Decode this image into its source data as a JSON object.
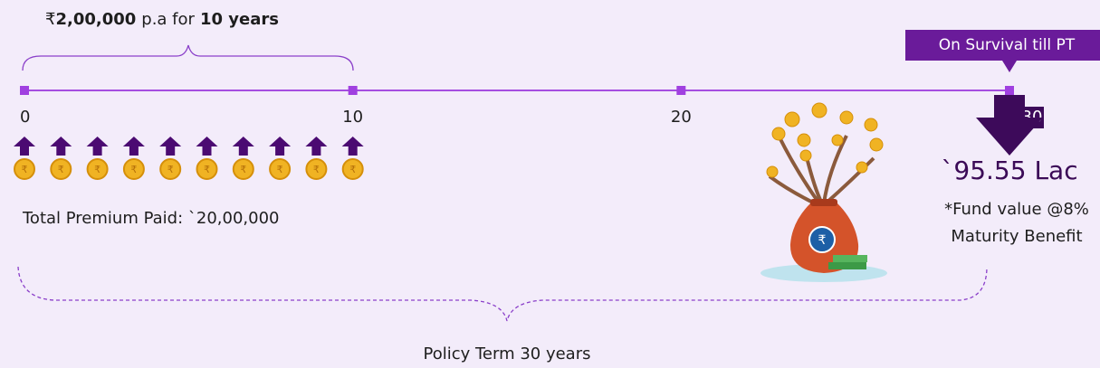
{
  "header": {
    "currency": "₹",
    "amount": "2,00,000",
    "middle": "p.a for",
    "term": "10 years"
  },
  "timeline": {
    "labels": [
      "0",
      "10",
      "20",
      "30"
    ]
  },
  "survival_label": "On Survival till PT",
  "total_premium": "Total Premium Paid:  `20,00,000",
  "fund": {
    "amount": "`95.55 Lac",
    "note": "*Fund value @8%",
    "benefit": "Maturity Benefit"
  },
  "policy_term": "Policy Term 30 years"
}
